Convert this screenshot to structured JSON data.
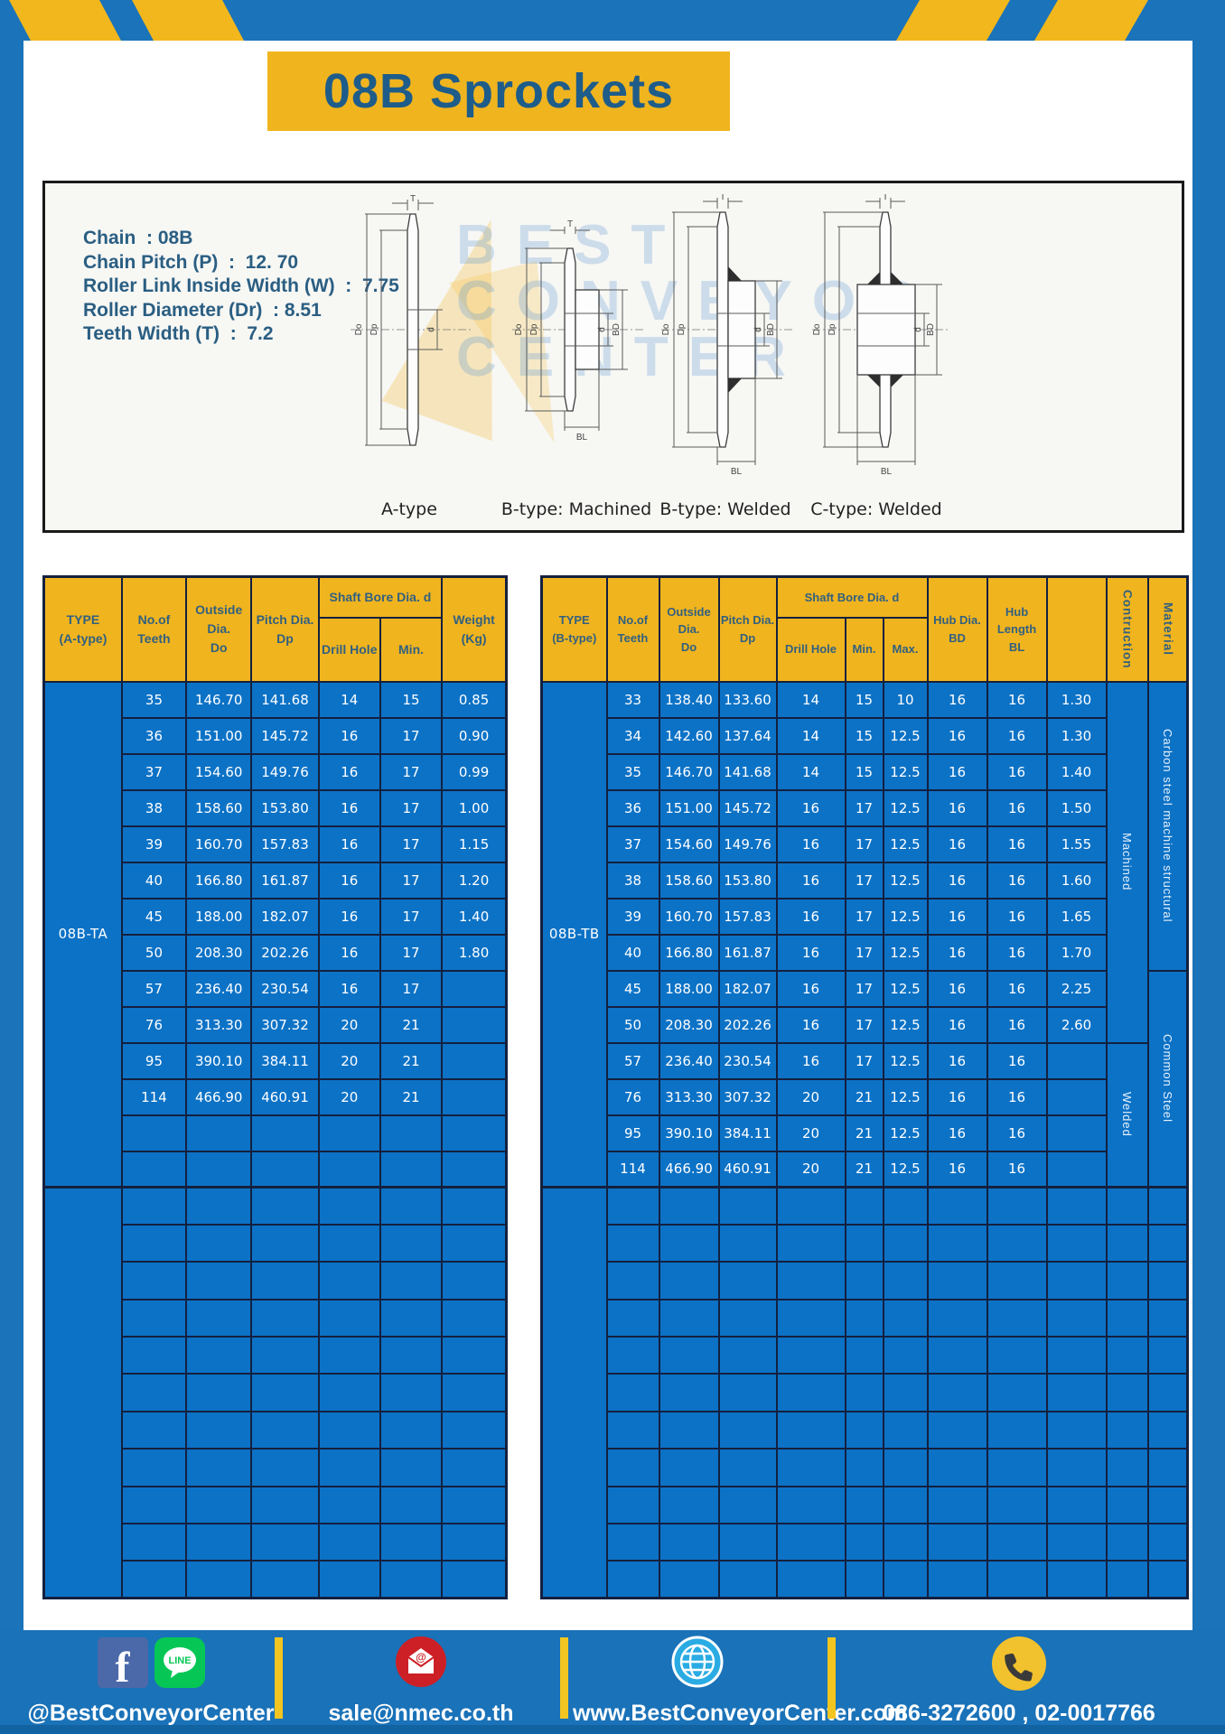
{
  "title": "08B Sprockets",
  "specs": {
    "lines": [
      "Chain  : 08B",
      "Chain Pitch (P)  :  12. 70",
      "Roller Link Inside Width (W)  :  7.75",
      "Roller Diameter (Dr)  : 8.51",
      "Teeth Width (T)  :  7.2"
    ]
  },
  "diagram": {
    "watermark_lines": [
      "BEST",
      "CONVEYOR",
      "CENTER"
    ],
    "dims": {
      "t": "T",
      "do": "Do",
      "dp": "Dp",
      "d": "d",
      "bd": "BD",
      "bl": "BL"
    },
    "captions": [
      "A-type",
      "B-type: Machined",
      "B-type: Welded",
      "C-type: Welded"
    ]
  },
  "left_table": {
    "type_label": "08B-TA",
    "headers": {
      "type": "TYPE\n(A-type)",
      "teeth": "No.of\nTeeth",
      "outside": "Outside\nDia.\nDo",
      "pitch": "Pitch Dia.\nDp",
      "shaft": "Shaft Bore Dia. d",
      "drill": "Drill Hole",
      "min": "Min.",
      "weight": "Weight\n(Kg)"
    },
    "rows": [
      [
        "35",
        "146.70",
        "141.68",
        "14",
        "15",
        "0.85"
      ],
      [
        "36",
        "151.00",
        "145.72",
        "16",
        "17",
        "0.90"
      ],
      [
        "37",
        "154.60",
        "149.76",
        "16",
        "17",
        "0.99"
      ],
      [
        "38",
        "158.60",
        "153.80",
        "16",
        "17",
        "1.00"
      ],
      [
        "39",
        "160.70",
        "157.83",
        "16",
        "17",
        "1.15"
      ],
      [
        "40",
        "166.80",
        "161.87",
        "16",
        "17",
        "1.20"
      ],
      [
        "45",
        "188.00",
        "182.07",
        "16",
        "17",
        "1.40"
      ],
      [
        "50",
        "208.30",
        "202.26",
        "16",
        "17",
        "1.80"
      ],
      [
        "57",
        "236.40",
        "230.54",
        "16",
        "17",
        ""
      ],
      [
        "76",
        "313.30",
        "307.32",
        "20",
        "21",
        ""
      ],
      [
        "95",
        "390.10",
        "384.11",
        "20",
        "21",
        ""
      ],
      [
        "114",
        "466.90",
        "460.91",
        "20",
        "21",
        ""
      ]
    ],
    "group1_empty_rows": 2,
    "empty_group_rows": 11
  },
  "right_table": {
    "type_label": "08B-TB",
    "headers": {
      "type": "TYPE\n(B-type)",
      "teeth": "No.of\nTeeth",
      "outside": "Outside\nDia.\nDo",
      "pitch": "Pitch Dia.\nDp",
      "shaft": "Shaft Bore Dia. d",
      "drill": "Drill Hole",
      "min": "Min.",
      "max": "Max.",
      "hub_dia": "Hub Dia.\nBD",
      "hub_len": "Hub\nLength\nBL",
      "construction": "Contruction",
      "material": "Material"
    },
    "rows": [
      [
        "33",
        "138.40",
        "133.60",
        "14",
        "15",
        "10",
        "16",
        "16",
        "1.30"
      ],
      [
        "34",
        "142.60",
        "137.64",
        "14",
        "15",
        "12.5",
        "16",
        "16",
        "1.30"
      ],
      [
        "35",
        "146.70",
        "141.68",
        "14",
        "15",
        "12.5",
        "16",
        "16",
        "1.40"
      ],
      [
        "36",
        "151.00",
        "145.72",
        "16",
        "17",
        "12.5",
        "16",
        "16",
        "1.50"
      ],
      [
        "37",
        "154.60",
        "149.76",
        "16",
        "17",
        "12.5",
        "16",
        "16",
        "1.55"
      ],
      [
        "38",
        "158.60",
        "153.80",
        "16",
        "17",
        "12.5",
        "16",
        "16",
        "1.60"
      ],
      [
        "39",
        "160.70",
        "157.83",
        "16",
        "17",
        "12.5",
        "16",
        "16",
        "1.65"
      ],
      [
        "40",
        "166.80",
        "161.87",
        "16",
        "17",
        "12.5",
        "16",
        "16",
        "1.70"
      ],
      [
        "45",
        "188.00",
        "182.07",
        "16",
        "17",
        "12.5",
        "16",
        "16",
        "2.25"
      ],
      [
        "50",
        "208.30",
        "202.26",
        "16",
        "17",
        "12.5",
        "16",
        "16",
        "2.60"
      ],
      [
        "57",
        "236.40",
        "230.54",
        "16",
        "17",
        "12.5",
        "16",
        "16",
        ""
      ],
      [
        "76",
        "313.30",
        "307.32",
        "20",
        "21",
        "12.5",
        "16",
        "16",
        ""
      ],
      [
        "95",
        "390.10",
        "384.11",
        "20",
        "21",
        "12.5",
        "16",
        "16",
        ""
      ],
      [
        "114",
        "466.90",
        "460.91",
        "20",
        "21",
        "12.5",
        "16",
        "16",
        ""
      ]
    ],
    "construction_groups": [
      {
        "label": "Machined",
        "rows": 10
      },
      {
        "label": "Welded",
        "rows": 4
      }
    ],
    "material_groups": [
      {
        "label": "Carbon steel  machine structural",
        "rows": 8
      },
      {
        "label": "Common Steel",
        "rows": 6
      }
    ],
    "empty_group_rows": 11
  },
  "footer": {
    "social_label": "@BestConveyorCenter",
    "email": "sale@nmec.co.th",
    "website": "www.BestConveyorCenter.com",
    "phone": "086-3272600 , 02-0017766",
    "facebook_glyph": "f",
    "line_label": "LINE",
    "at_glyph": "@"
  },
  "colors": {
    "frame_blue": "#1b73b9",
    "cell_blue": "#0c72c6",
    "grid_navy": "#13203f",
    "header_yellow": "#f0b41f",
    "title_blue": "#1e5c8a",
    "spec_text": "#2a5e82",
    "facebook_blue": "#4b69a9",
    "line_green": "#06c755",
    "email_red": "#cd2026",
    "globe_blue": "#2aabe3",
    "phone_yellow": "#f2c12e",
    "divider_yellow": "#f3c520"
  }
}
